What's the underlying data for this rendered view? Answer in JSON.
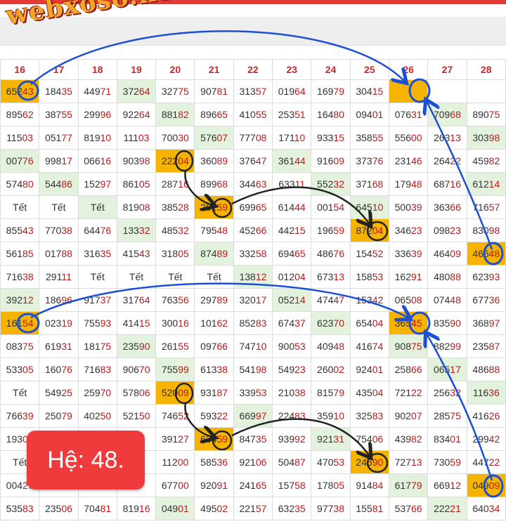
{
  "watermark": "webxoso.net",
  "badge": "Hệ: 48.",
  "headers": [
    "16",
    "17",
    "18",
    "19",
    "20",
    "21",
    "22",
    "23",
    "24",
    "25",
    "26",
    "27",
    "28"
  ],
  "rows": [
    [
      [
        "65243",
        "gold"
      ],
      [
        "18435",
        ""
      ],
      [
        "44971",
        ""
      ],
      [
        "37264",
        "green"
      ],
      [
        "32775",
        ""
      ],
      [
        "90781",
        ""
      ],
      [
        "31357",
        ""
      ],
      [
        "01964",
        ""
      ],
      [
        "16979",
        ""
      ],
      [
        "30415",
        ""
      ],
      [
        "",
        "gold"
      ],
      [
        "",
        ""
      ],
      [
        "",
        ""
      ]
    ],
    [
      [
        "89562",
        ""
      ],
      [
        "38755",
        ""
      ],
      [
        "29996",
        ""
      ],
      [
        "92264",
        ""
      ],
      [
        "88182",
        "green"
      ],
      [
        "89665",
        ""
      ],
      [
        "41055",
        ""
      ],
      [
        "25351",
        ""
      ],
      [
        "16480",
        ""
      ],
      [
        "09401",
        ""
      ],
      [
        "07631",
        ""
      ],
      [
        "70968",
        "green"
      ],
      [
        "89075",
        ""
      ]
    ],
    [
      [
        "11503",
        ""
      ],
      [
        "05177",
        ""
      ],
      [
        "81910",
        ""
      ],
      [
        "11103",
        ""
      ],
      [
        "70030",
        ""
      ],
      [
        "57607",
        "green"
      ],
      [
        "77708",
        ""
      ],
      [
        "17110",
        ""
      ],
      [
        "93315",
        ""
      ],
      [
        "35855",
        ""
      ],
      [
        "55600",
        ""
      ],
      [
        "26313",
        ""
      ],
      [
        "30398",
        "green"
      ]
    ],
    [
      [
        "00776",
        "green"
      ],
      [
        "99817",
        ""
      ],
      [
        "06616",
        ""
      ],
      [
        "90398",
        ""
      ],
      [
        "22204",
        "gold"
      ],
      [
        "36089",
        ""
      ],
      [
        "37647",
        ""
      ],
      [
        "36144",
        "green"
      ],
      [
        "91609",
        ""
      ],
      [
        "37376",
        ""
      ],
      [
        "23146",
        ""
      ],
      [
        "26422",
        ""
      ],
      [
        "45982",
        ""
      ]
    ],
    [
      [
        "57480",
        ""
      ],
      [
        "54486",
        "green"
      ],
      [
        "15297",
        ""
      ],
      [
        "86105",
        ""
      ],
      [
        "28716",
        ""
      ],
      [
        "89968",
        ""
      ],
      [
        "34463",
        ""
      ],
      [
        "63311",
        ""
      ],
      [
        "55232",
        "green"
      ],
      [
        "37168",
        ""
      ],
      [
        "17948",
        ""
      ],
      [
        "68716",
        ""
      ],
      [
        "61214",
        "green"
      ]
    ],
    [
      [
        "Tết",
        ""
      ],
      [
        "Tết",
        ""
      ],
      [
        "Tết",
        "green"
      ],
      [
        "81908",
        ""
      ],
      [
        "38528",
        ""
      ],
      [
        "28159",
        "gold"
      ],
      [
        "69965",
        ""
      ],
      [
        "61444",
        ""
      ],
      [
        "00154",
        ""
      ],
      [
        "64510",
        "green"
      ],
      [
        "50039",
        ""
      ],
      [
        "36366",
        ""
      ],
      [
        "71657",
        ""
      ]
    ],
    [
      [
        "85543",
        ""
      ],
      [
        "77038",
        ""
      ],
      [
        "64476",
        ""
      ],
      [
        "13332",
        "green"
      ],
      [
        "48532",
        ""
      ],
      [
        "79548",
        ""
      ],
      [
        "45266",
        ""
      ],
      [
        "44215",
        ""
      ],
      [
        "19659",
        ""
      ],
      [
        "87204",
        "gold"
      ],
      [
        "34623",
        ""
      ],
      [
        "09823",
        ""
      ],
      [
        "83098",
        ""
      ]
    ],
    [
      [
        "56185",
        ""
      ],
      [
        "01788",
        ""
      ],
      [
        "31635",
        ""
      ],
      [
        "41543",
        ""
      ],
      [
        "31805",
        ""
      ],
      [
        "87489",
        "green"
      ],
      [
        "33258",
        ""
      ],
      [
        "69465",
        ""
      ],
      [
        "48676",
        ""
      ],
      [
        "15452",
        ""
      ],
      [
        "33639",
        ""
      ],
      [
        "46409",
        ""
      ],
      [
        "46648",
        "gold"
      ]
    ],
    [
      [
        "71638",
        ""
      ],
      [
        "29111",
        ""
      ],
      [
        "Tết",
        ""
      ],
      [
        "Tết",
        ""
      ],
      [
        "Tết",
        ""
      ],
      [
        "Tết",
        ""
      ],
      [
        "13812",
        "green"
      ],
      [
        "01204",
        ""
      ],
      [
        "67313",
        ""
      ],
      [
        "15853",
        ""
      ],
      [
        "16291",
        ""
      ],
      [
        "48088",
        ""
      ],
      [
        "62393",
        ""
      ]
    ],
    [
      [
        "39212",
        "green"
      ],
      [
        "18696",
        ""
      ],
      [
        "91737",
        ""
      ],
      [
        "31764",
        ""
      ],
      [
        "76356",
        ""
      ],
      [
        "29789",
        ""
      ],
      [
        "32017",
        ""
      ],
      [
        "05214",
        "green"
      ],
      [
        "47447",
        ""
      ],
      [
        "15342",
        ""
      ],
      [
        "06508",
        ""
      ],
      [
        "07448",
        ""
      ],
      [
        "67736",
        ""
      ]
    ],
    [
      [
        "16154",
        "gold"
      ],
      [
        "02319",
        ""
      ],
      [
        "75593",
        ""
      ],
      [
        "41415",
        ""
      ],
      [
        "30016",
        ""
      ],
      [
        "10162",
        ""
      ],
      [
        "85283",
        ""
      ],
      [
        "67437",
        ""
      ],
      [
        "62370",
        "green"
      ],
      [
        "65404",
        ""
      ],
      [
        "36545",
        "gold"
      ],
      [
        "83590",
        ""
      ],
      [
        "36897",
        ""
      ]
    ],
    [
      [
        "08375",
        ""
      ],
      [
        "61931",
        ""
      ],
      [
        "18175",
        ""
      ],
      [
        "23590",
        "green"
      ],
      [
        "26155",
        ""
      ],
      [
        "09766",
        ""
      ],
      [
        "74710",
        ""
      ],
      [
        "90053",
        ""
      ],
      [
        "40948",
        ""
      ],
      [
        "41674",
        ""
      ],
      [
        "90875",
        "green"
      ],
      [
        "88299",
        ""
      ],
      [
        "23587",
        ""
      ]
    ],
    [
      [
        "53305",
        ""
      ],
      [
        "16076",
        ""
      ],
      [
        "71683",
        ""
      ],
      [
        "90670",
        ""
      ],
      [
        "75599",
        "green"
      ],
      [
        "61338",
        ""
      ],
      [
        "54198",
        ""
      ],
      [
        "54923",
        ""
      ],
      [
        "26002",
        ""
      ],
      [
        "92401",
        ""
      ],
      [
        "25866",
        ""
      ],
      [
        "06517",
        "green"
      ],
      [
        "48688",
        ""
      ]
    ],
    [
      [
        "Tết",
        ""
      ],
      [
        "54925",
        ""
      ],
      [
        "25970",
        ""
      ],
      [
        "57806",
        ""
      ],
      [
        "52009",
        "gold"
      ],
      [
        "93187",
        ""
      ],
      [
        "33953",
        ""
      ],
      [
        "21038",
        ""
      ],
      [
        "81579",
        ""
      ],
      [
        "43504",
        ""
      ],
      [
        "72122",
        ""
      ],
      [
        "25632",
        ""
      ],
      [
        "11636",
        "green"
      ]
    ],
    [
      [
        "76639",
        ""
      ],
      [
        "25079",
        ""
      ],
      [
        "40250",
        ""
      ],
      [
        "52150",
        ""
      ],
      [
        "74652",
        ""
      ],
      [
        "59322",
        ""
      ],
      [
        "66997",
        "green"
      ],
      [
        "22483",
        ""
      ],
      [
        "35910",
        ""
      ],
      [
        "32583",
        ""
      ],
      [
        "90207",
        ""
      ],
      [
        "28575",
        ""
      ],
      [
        "41626",
        ""
      ]
    ],
    [
      [
        "19309",
        ""
      ],
      [
        "",
        ""
      ],
      [
        "",
        ""
      ],
      [
        "",
        ""
      ],
      [
        "39127",
        ""
      ],
      [
        "63459",
        "gold"
      ],
      [
        "84735",
        ""
      ],
      [
        "93992",
        ""
      ],
      [
        "92131",
        "green"
      ],
      [
        "75406",
        ""
      ],
      [
        "43982",
        ""
      ],
      [
        "83401",
        ""
      ],
      [
        "29942",
        ""
      ]
    ],
    [
      [
        "Tết",
        ""
      ],
      [
        "",
        ""
      ],
      [
        "",
        ""
      ],
      [
        "",
        ""
      ],
      [
        "11200",
        ""
      ],
      [
        "58536",
        ""
      ],
      [
        "92106",
        ""
      ],
      [
        "50487",
        ""
      ],
      [
        "47053",
        ""
      ],
      [
        "24690",
        "gold"
      ],
      [
        "72713",
        ""
      ],
      [
        "73059",
        ""
      ],
      [
        "44722",
        ""
      ]
    ],
    [
      [
        "00427",
        ""
      ],
      [
        "",
        ""
      ],
      [
        "",
        ""
      ],
      [
        "",
        ""
      ],
      [
        "67700",
        ""
      ],
      [
        "92091",
        ""
      ],
      [
        "24165",
        ""
      ],
      [
        "15758",
        ""
      ],
      [
        "17805",
        ""
      ],
      [
        "91484",
        ""
      ],
      [
        "61779",
        "green"
      ],
      [
        "66912",
        ""
      ],
      [
        "04909",
        "gold"
      ]
    ],
    [
      [
        "53583",
        ""
      ],
      [
        "23506",
        ""
      ],
      [
        "70481",
        ""
      ],
      [
        "81916",
        ""
      ],
      [
        "04901",
        "green"
      ],
      [
        "49502",
        ""
      ],
      [
        "22157",
        ""
      ],
      [
        "63235",
        ""
      ],
      [
        "97738",
        ""
      ],
      [
        "15581",
        ""
      ],
      [
        "53766",
        ""
      ],
      [
        "22221",
        "green"
      ],
      [
        "64034",
        ""
      ]
    ]
  ]
}
